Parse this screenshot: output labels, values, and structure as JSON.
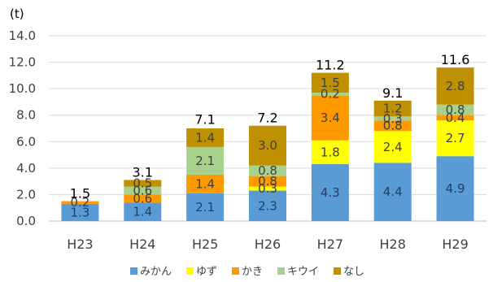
{
  "chart_data": {
    "type": "bar",
    "stacked": true,
    "unit": "(t)",
    "categories": [
      "H23",
      "H24",
      "H25",
      "H26",
      "H27",
      "H28",
      "H29"
    ],
    "series": [
      {
        "name": "みかん",
        "color": "#5b9bd5",
        "values": [
          1.3,
          1.4,
          2.1,
          2.3,
          4.3,
          4.4,
          4.9
        ]
      },
      {
        "name": "ゆず",
        "color": "#ffff00",
        "values": [
          0.0,
          0.0,
          0.0,
          0.3,
          1.8,
          2.4,
          2.7
        ]
      },
      {
        "name": "かき",
        "color": "#ff9900",
        "values": [
          0.2,
          0.6,
          1.4,
          0.8,
          3.4,
          0.8,
          0.4
        ]
      },
      {
        "name": "キウイ",
        "color": "#a9d18e",
        "values": [
          0.0,
          0.6,
          2.1,
          0.8,
          0.2,
          0.3,
          0.8
        ]
      },
      {
        "name": "なし",
        "color": "#bf9000",
        "values": [
          0.0,
          0.5,
          1.4,
          3.0,
          1.5,
          1.2,
          2.8
        ]
      }
    ],
    "totals": [
      1.5,
      3.1,
      7.1,
      7.2,
      11.2,
      9.1,
      11.6
    ],
    "ylim": [
      0,
      14
    ],
    "yticks": [
      "0.0",
      "2.0",
      "4.0",
      "6.0",
      "8.0",
      "10.0",
      "12.0",
      "14.0"
    ],
    "grid": true,
    "legend_position": "bottom"
  }
}
